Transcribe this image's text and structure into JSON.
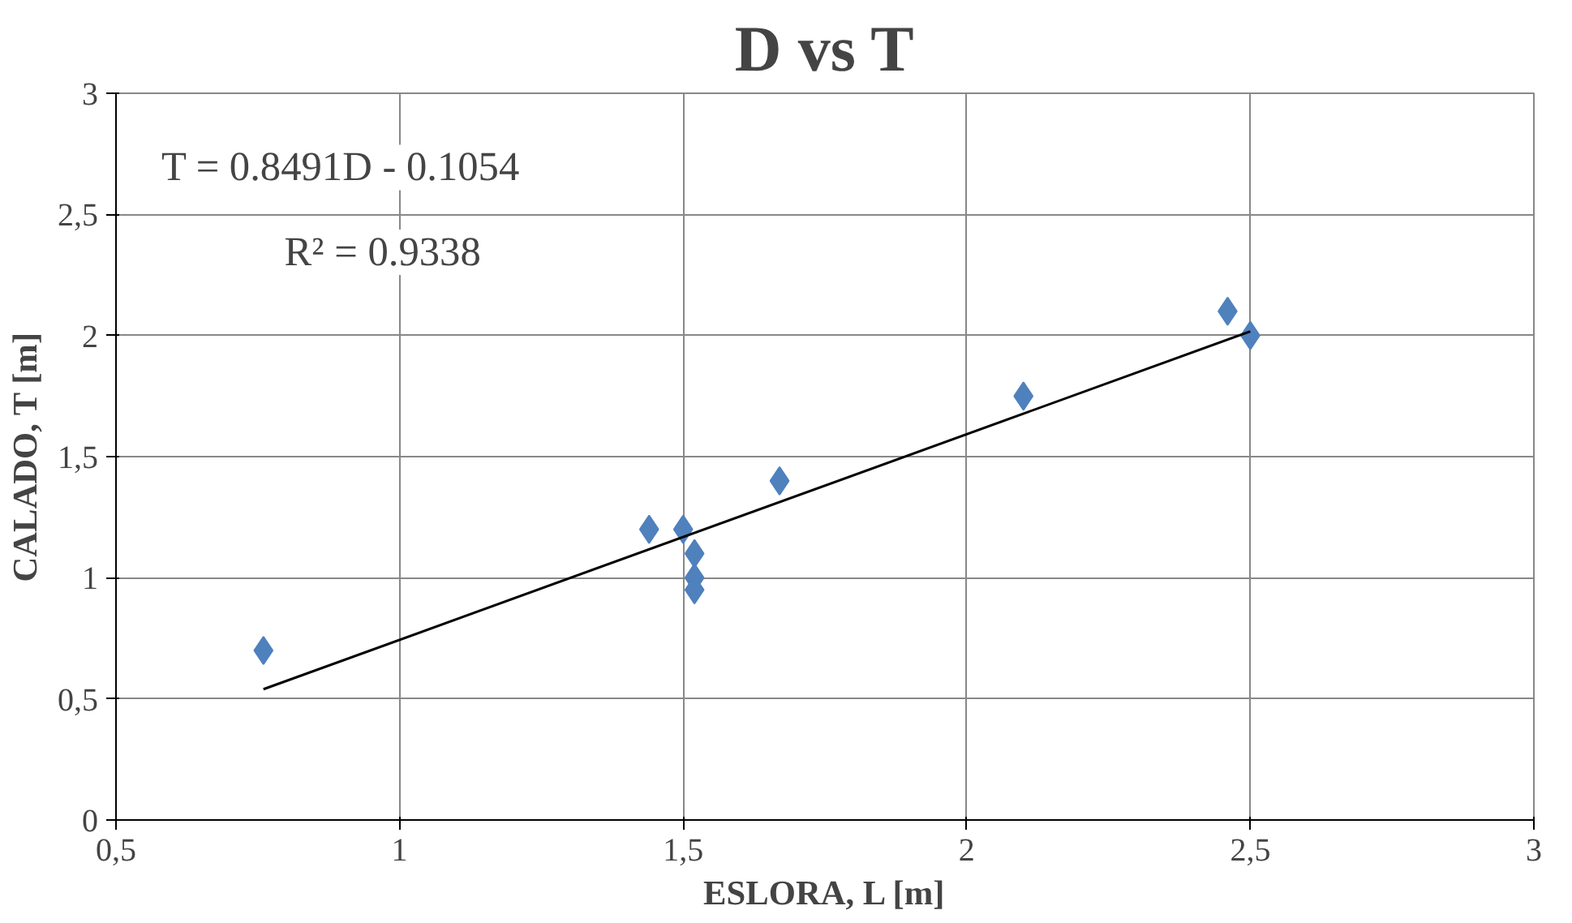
{
  "chart_data": {
    "type": "scatter",
    "title": "D vs T",
    "xlabel": "ESLORA, L [m]",
    "ylabel": "CALADO, T [m]",
    "xlim": [
      0.5,
      3
    ],
    "ylim": [
      0,
      3
    ],
    "xticks": [
      {
        "value": 0.5,
        "label": "0,5"
      },
      1,
      {
        "value": 1.5,
        "label": "1,5"
      },
      2,
      {
        "value": 2.5,
        "label": "2,5"
      },
      3
    ],
    "yticks": [
      0,
      {
        "value": 0.5,
        "label": "0,5"
      },
      1,
      {
        "value": 1.5,
        "label": "1,5"
      },
      2,
      {
        "value": 2.5,
        "label": "2,5"
      },
      3
    ],
    "grid": true,
    "marker": "diamond",
    "series": [
      {
        "color": "#4f81bd",
        "x": [
          0.76,
          1.44,
          1.5,
          1.52,
          1.52,
          1.52,
          1.67,
          2.1,
          2.46,
          2.5
        ],
        "values": [
          0.7,
          1.2,
          1.2,
          1.1,
          1.0,
          0.95,
          1.4,
          1.75,
          2.1,
          2.0
        ]
      },
      {
        "type": "line",
        "marker": "none",
        "color": "#000000",
        "x": [
          0.76,
          2.5
        ],
        "values": [
          0.54,
          2.017
        ]
      }
    ],
    "annotations": [
      "T = 0.8491D - 0.1054",
      "R² = 0.9338"
    ]
  }
}
